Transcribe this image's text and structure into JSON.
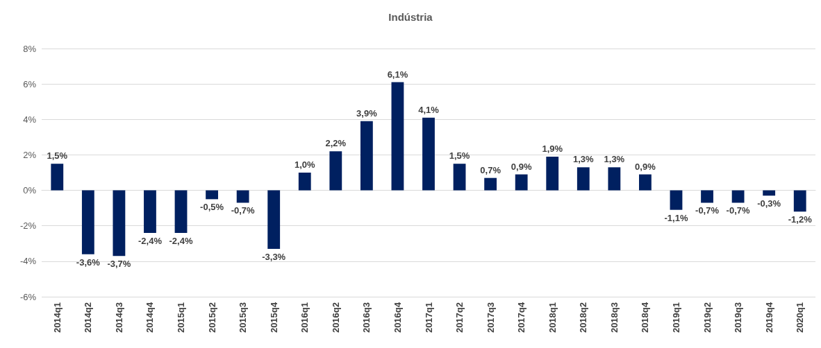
{
  "chart_data": {
    "type": "bar",
    "title": "Indústria",
    "categories": [
      "2014q1",
      "2014q2",
      "2014q3",
      "2014q4",
      "2015q1",
      "2015q2",
      "2015q3",
      "2015q4",
      "2016q1",
      "2016q2",
      "2016q3",
      "2016q4",
      "2017q1",
      "2017q2",
      "2017q3",
      "2017q4",
      "2018q1",
      "2018q2",
      "2018q3",
      "2018q4",
      "2019q1",
      "2019q2",
      "2019q3",
      "2019q4",
      "2020q1"
    ],
    "values": [
      1.5,
      -3.6,
      -3.7,
      -2.4,
      -2.4,
      -0.5,
      -0.7,
      -3.3,
      1.0,
      2.2,
      3.9,
      6.1,
      4.1,
      1.5,
      0.7,
      0.9,
      1.9,
      1.3,
      1.3,
      0.9,
      -1.1,
      -0.7,
      -0.7,
      -0.3,
      -1.2
    ],
    "value_labels": [
      "1,5%",
      "-3,6%",
      "-3,7%",
      "-2,4%",
      "-2,4%",
      "-0,5%",
      "-0,7%",
      "-3,3%",
      "1,0%",
      "2,2%",
      "3,9%",
      "6,1%",
      "4,1%",
      "1,5%",
      "0,7%",
      "0,9%",
      "1,9%",
      "1,3%",
      "1,3%",
      "0,9%",
      "-1,1%",
      "-0,7%",
      "-0,7%",
      "-0,3%",
      "-1,2%"
    ],
    "color": "#002060",
    "ylim": [
      -6,
      8
    ],
    "yticks": [
      {
        "value": -6,
        "label": "-6%"
      },
      {
        "value": -4,
        "label": "-4%"
      },
      {
        "value": -2,
        "label": "-2%"
      },
      {
        "value": 0,
        "label": "0%"
      },
      {
        "value": 2,
        "label": "2%"
      },
      {
        "value": 4,
        "label": "4%"
      },
      {
        "value": 6,
        "label": "6%"
      },
      {
        "value": 8,
        "label": "8%"
      }
    ],
    "grid": "y"
  }
}
